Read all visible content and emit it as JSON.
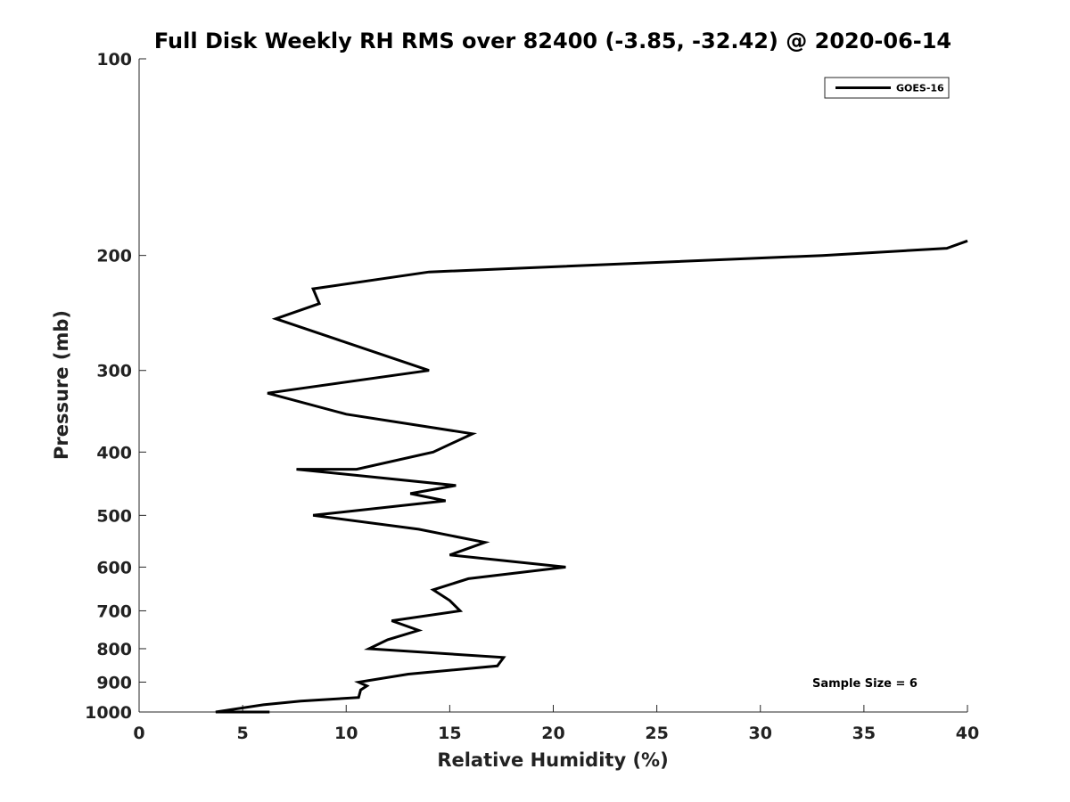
{
  "chart_data": {
    "type": "line",
    "title": "Full Disk Weekly RH RMS over 82400 (-3.85, -32.42) @ 2020-06-14",
    "xlabel": "Relative Humidity (%)",
    "ylabel": "Pressure (mb)",
    "xlim": [
      0,
      40
    ],
    "ylim": [
      100,
      1000
    ],
    "y_scale": "log",
    "y_reversed": true,
    "grid": false,
    "legend_position": "top-right",
    "x_ticks": [
      0,
      5,
      10,
      15,
      20,
      25,
      30,
      35,
      40
    ],
    "y_ticks": [
      100,
      200,
      300,
      400,
      500,
      600,
      700,
      800,
      900,
      1000
    ],
    "series": [
      {
        "name": "GOES-16",
        "color": "#000000",
        "x": [
          40.0,
          39.0,
          33.0,
          14.0,
          8.4,
          8.7,
          6.6,
          14.0,
          6.2,
          10.0,
          16.1,
          14.2,
          10.5,
          7.6,
          15.3,
          13.1,
          14.8,
          8.4,
          13.5,
          16.7,
          15.0,
          20.6,
          15.9,
          14.2,
          15.0,
          15.5,
          12.2,
          13.5,
          12.0,
          11.1,
          17.6,
          17.3,
          13.0,
          10.6,
          11.0,
          10.7,
          10.6,
          7.8,
          6.0,
          3.7,
          6.3
        ],
        "y": [
          190,
          195,
          200,
          212,
          225,
          237,
          250,
          300,
          325,
          350,
          375,
          400,
          425,
          425,
          450,
          463,
          475,
          500,
          525,
          550,
          575,
          600,
          625,
          650,
          675,
          700,
          725,
          750,
          775,
          800,
          825,
          850,
          875,
          900,
          912,
          925,
          950,
          962,
          975,
          1000,
          1012
        ]
      }
    ],
    "annotations": [
      "Sample Size = 6"
    ]
  }
}
